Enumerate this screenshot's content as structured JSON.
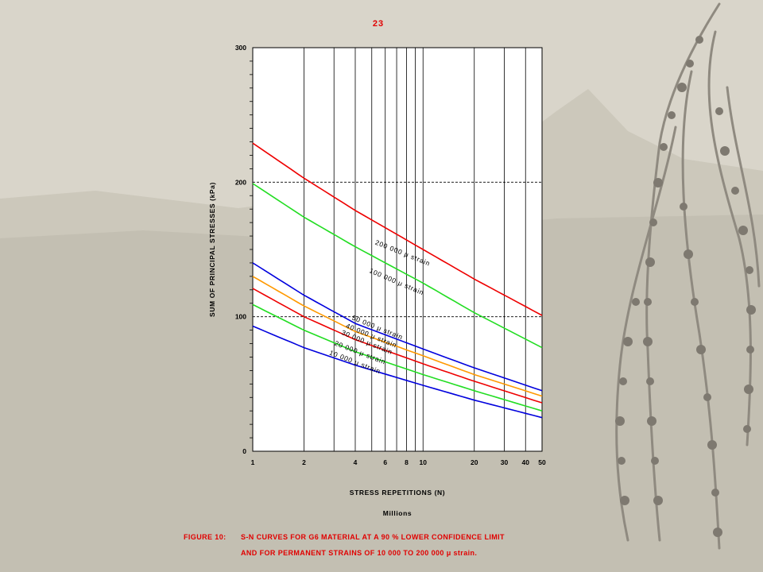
{
  "page": {
    "number": "23"
  },
  "colors": {
    "red": "#ee0000",
    "green": "#22dd22",
    "blue": "#0000dd",
    "orange": "#ff9900",
    "caption": "#e10000"
  },
  "caption": {
    "label": "FIGURE 10:",
    "line1": "S-N CURVES FOR G6 MATERIAL AT A 90 % LOWER CONFIDENCE LIMIT",
    "line2": "AND FOR PERMANENT STRAINS OF 10 000 TO 200 000 μ strain."
  },
  "chart_data": {
    "type": "line",
    "title": "",
    "xlabel": "STRESS REPETITIONS (N)",
    "xlabel_unit": "Millions",
    "ylabel": "SUM OF PRINCIPAL STRESSES  (kPa)",
    "x_scale": "log",
    "xlim": [
      1,
      50
    ],
    "ylim": [
      0,
      300
    ],
    "x_ticks": [
      {
        "value": 1,
        "label": "1"
      },
      {
        "value": 2,
        "label": "2"
      },
      {
        "value": 4,
        "label": "4"
      },
      {
        "value": 6,
        "label": "6"
      },
      {
        "value": 8,
        "label": "8"
      },
      {
        "value": 10,
        "label": "10"
      },
      {
        "value": 20,
        "label": "20"
      },
      {
        "value": 30,
        "label": "30"
      },
      {
        "value": 40,
        "label": "40"
      },
      {
        "value": 50,
        "label": "50"
      }
    ],
    "x_gridlines": [
      2,
      3,
      4,
      5,
      6,
      7,
      8,
      9,
      10,
      20,
      30,
      40
    ],
    "y_ticks": [
      {
        "value": 0,
        "label": "0"
      },
      {
        "value": 100,
        "label": "100"
      },
      {
        "value": 200,
        "label": "200"
      },
      {
        "value": 300,
        "label": "300"
      }
    ],
    "y_gridlines_dashed": [
      100,
      200
    ],
    "series": [
      {
        "name": "200 000 μ strain",
        "color": "red",
        "x": [
          1,
          2,
          4,
          10,
          20,
          50
        ],
        "y": [
          229,
          203,
          179,
          150,
          128,
          101
        ],
        "label_at": {
          "x": 5.2,
          "y": 154,
          "angle": 22
        }
      },
      {
        "name": "100 000 μ strain",
        "color": "green",
        "x": [
          1,
          2,
          4,
          10,
          20,
          50
        ],
        "y": [
          199,
          174,
          152,
          125,
          103,
          77
        ],
        "label_at": {
          "x": 4.8,
          "y": 133,
          "angle": 23
        }
      },
      {
        "name": "50 000 μ strain",
        "color": "blue",
        "x": [
          1,
          2,
          4,
          10,
          20,
          50
        ],
        "y": [
          140,
          116,
          95,
          76,
          62,
          45
        ],
        "label_at": {
          "x": 3.8,
          "y": 98,
          "angle": 22
        }
      },
      {
        "name": "40 000 μ strain",
        "color": "orange",
        "x": [
          1,
          2,
          4,
          10,
          20,
          50
        ],
        "y": [
          130,
          108,
          89,
          71,
          57,
          41
        ],
        "label_at": {
          "x": 3.5,
          "y": 92,
          "angle": 22
        }
      },
      {
        "name": "30 000 μ strain",
        "color": "red",
        "x": [
          1,
          2,
          4,
          10,
          20,
          50
        ],
        "y": [
          121,
          100,
          83,
          65,
          52,
          36
        ],
        "label_at": {
          "x": 3.3,
          "y": 87,
          "angle": 22
        }
      },
      {
        "name": "20 000 μ strain",
        "color": "green",
        "x": [
          1,
          2,
          4,
          10,
          20,
          50
        ],
        "y": [
          109,
          90,
          74,
          57,
          45,
          30
        ],
        "label_at": {
          "x": 3.0,
          "y": 79,
          "angle": 21
        }
      },
      {
        "name": "10 000 μ strain",
        "color": "blue",
        "x": [
          1,
          2,
          4,
          10,
          20,
          50
        ],
        "y": [
          93,
          77,
          64,
          49,
          38,
          25
        ],
        "label_at": {
          "x": 2.8,
          "y": 72,
          "angle": 21
        }
      }
    ]
  }
}
